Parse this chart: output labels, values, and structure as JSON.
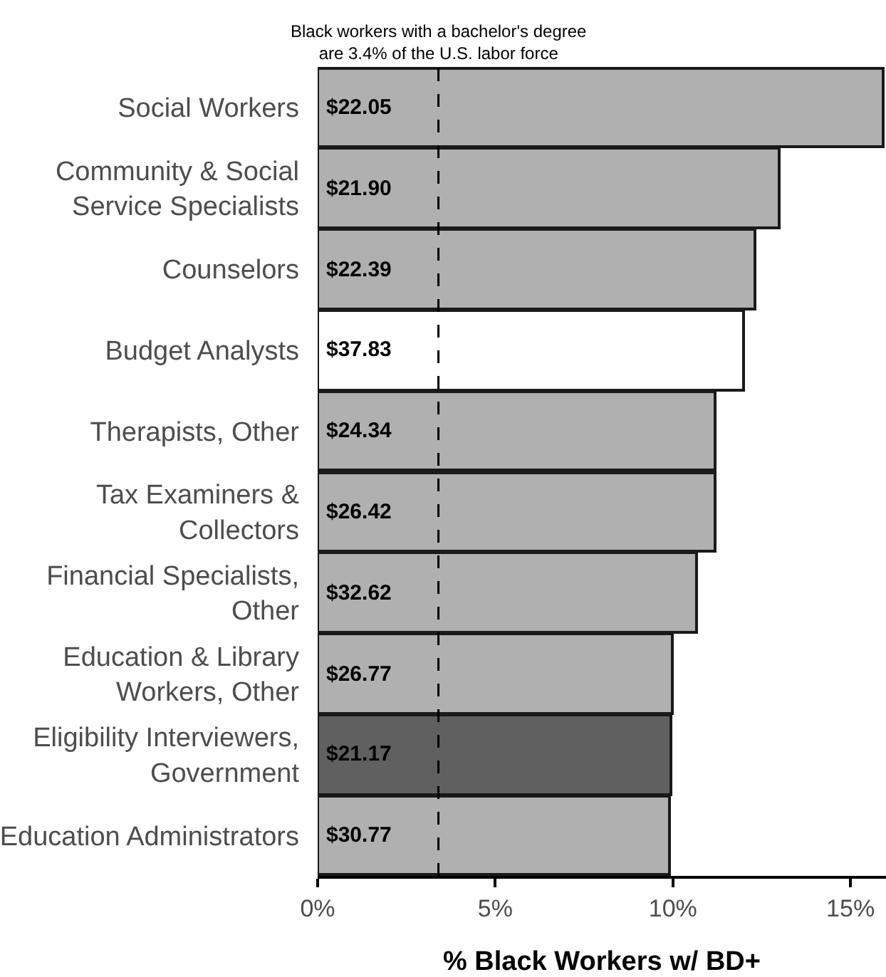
{
  "chart_data": {
    "type": "bar",
    "orientation": "horizontal",
    "xlabel": "% Black Workers w/ BD+",
    "categories": [
      "Social Workers",
      "Community & Social\nService Specialists",
      "Counselors",
      "Budget Analysts",
      "Therapists, Other",
      "Tax Examiners &\nCollectors",
      "Financial Specialists,\nOther",
      "Education & Library\nWorkers, Other",
      "Eligibility Interviewers,\nGovernment",
      "Education Administrators"
    ],
    "values": [
      15.9,
      13.0,
      12.3,
      12.0,
      11.2,
      11.2,
      10.65,
      10.0,
      9.95,
      9.9
    ],
    "colors": [
      "#b0b0b0",
      "#b0b0b0",
      "#b0b0b0",
      "#ffffff",
      "#b0b0b0",
      "#b0b0b0",
      "#b0b0b0",
      "#b0b0b0",
      "#606060",
      "#b0b0b0"
    ],
    "annotations": [
      "$22.05",
      "$21.90",
      "$22.39",
      "$37.83",
      "$24.34",
      "$26.42",
      "$32.62",
      "$26.77",
      "$21.17",
      "$30.77"
    ],
    "xlim": [
      0,
      16
    ],
    "xticks": [
      {
        "value": 0,
        "label": "0%"
      },
      {
        "value": 5,
        "label": "5%"
      },
      {
        "value": 10,
        "label": "10%"
      },
      {
        "value": 15,
        "label": "15%"
      }
    ],
    "ref_lines": [
      {
        "axis": "x",
        "value": 3.4,
        "label": "Black workers with a bachelor's degree\nare 3.4% of the U.S. labor force",
        "color": "#000000",
        "line_style": "dashed"
      }
    ]
  }
}
